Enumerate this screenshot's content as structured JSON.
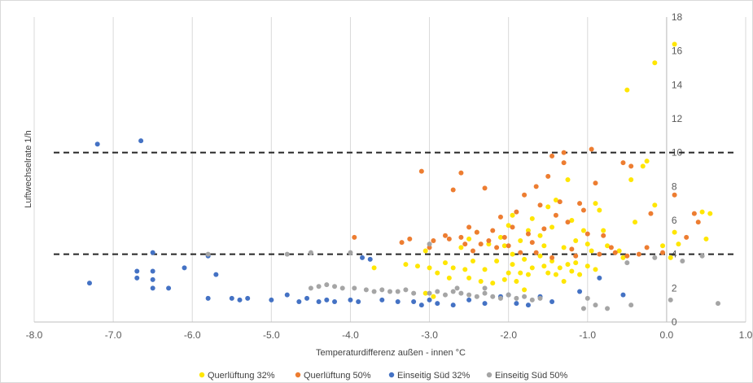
{
  "chart_data": {
    "type": "scatter",
    "title": "",
    "xlabel": "Temperaturdifferenz außen - innen °C",
    "ylabel": "Luftwechselrate 1/h",
    "xlim": [
      -8.0,
      1.0
    ],
    "ylim": [
      0,
      18
    ],
    "x_ticks": [
      -8,
      -7,
      -6,
      -5,
      -4,
      -3,
      -2,
      -1,
      0,
      1
    ],
    "x_tick_labels": [
      "-8.0",
      "-7.0",
      "-6.0",
      "-5.0",
      "-4.0",
      "-3.0",
      "-2.0",
      "-1.0",
      "0.0",
      "1.0"
    ],
    "y_ticks": [
      0,
      2,
      4,
      6,
      8,
      10,
      12,
      14,
      16,
      18
    ],
    "y_tick_labels": [
      "0",
      "2",
      "4",
      "6",
      "8",
      "10",
      "12",
      "14",
      "16",
      "18"
    ],
    "y_axis_side": "right",
    "grid": "vertical",
    "legend_position": "bottom",
    "reference_lines": [
      {
        "y": 10,
        "color": "#262626",
        "style": "dashed"
      },
      {
        "y": 4,
        "color": "#262626",
        "style": "dashed"
      }
    ],
    "series": [
      {
        "name": "Querlüftung 32%",
        "color": "#ffe600",
        "points": [
          [
            -3.7,
            3.2
          ],
          [
            -3.3,
            3.4
          ],
          [
            -3.15,
            3.3
          ],
          [
            -3.05,
            4.2
          ],
          [
            -3.0,
            3.2
          ],
          [
            -2.8,
            3.5
          ],
          [
            -2.75,
            2.6
          ],
          [
            -2.7,
            3.2
          ],
          [
            -2.55,
            3.1
          ],
          [
            -2.5,
            2.6
          ],
          [
            -2.45,
            3.6
          ],
          [
            -2.35,
            2.4
          ],
          [
            -2.3,
            3.1
          ],
          [
            -2.2,
            2.3
          ],
          [
            -2.15,
            3.6
          ],
          [
            -2.05,
            2.5
          ],
          [
            -2.0,
            2.9
          ],
          [
            -1.95,
            3.4
          ],
          [
            -1.9,
            2.4
          ],
          [
            -1.85,
            2.9
          ],
          [
            -1.8,
            3.7
          ],
          [
            -1.75,
            2.8
          ],
          [
            -1.7,
            3.2
          ],
          [
            -1.6,
            3.9
          ],
          [
            -1.55,
            3.3
          ],
          [
            -1.5,
            2.9
          ],
          [
            -1.45,
            3.6
          ],
          [
            -1.4,
            2.8
          ],
          [
            -1.35,
            3.2
          ],
          [
            -1.3,
            2.4
          ],
          [
            -1.25,
            3.4
          ],
          [
            -1.2,
            3.0
          ],
          [
            -1.15,
            3.5
          ],
          [
            -1.1,
            2.8
          ],
          [
            -1.0,
            3.3
          ],
          [
            -0.95,
            4.2
          ],
          [
            -0.9,
            3.1
          ],
          [
            -2.6,
            4.4
          ],
          [
            -2.5,
            4.9
          ],
          [
            -2.4,
            5.3
          ],
          [
            -2.25,
            4.6
          ],
          [
            -2.1,
            5.0
          ],
          [
            -2.0,
            5.7
          ],
          [
            -1.95,
            6.3
          ],
          [
            -1.85,
            4.8
          ],
          [
            -1.75,
            5.4
          ],
          [
            -1.7,
            6.1
          ],
          [
            -1.6,
            5.1
          ],
          [
            -1.55,
            4.5
          ],
          [
            -1.5,
            6.8
          ],
          [
            -1.45,
            5.6
          ],
          [
            -1.4,
            7.2
          ],
          [
            -1.3,
            4.4
          ],
          [
            -1.25,
            8.4
          ],
          [
            -1.2,
            6.0
          ],
          [
            -1.15,
            4.8
          ],
          [
            -1.05,
            5.4
          ],
          [
            -1.0,
            4.6
          ],
          [
            -0.9,
            7.0
          ],
          [
            -0.85,
            6.6
          ],
          [
            -0.8,
            5.4
          ],
          [
            -0.75,
            4.5
          ],
          [
            -0.6,
            4.2
          ],
          [
            -0.55,
            3.8
          ],
          [
            -0.45,
            8.4
          ],
          [
            -0.4,
            5.9
          ],
          [
            -0.3,
            9.2
          ],
          [
            -0.25,
            9.5
          ],
          [
            -0.15,
            6.9
          ],
          [
            -0.05,
            4.5
          ],
          [
            0.05,
            3.8
          ],
          [
            0.1,
            5.3
          ],
          [
            0.15,
            4.6
          ],
          [
            0.45,
            6.5
          ],
          [
            0.5,
            4.9
          ],
          [
            0.55,
            6.4
          ],
          [
            -2.9,
            2.9
          ],
          [
            -3.05,
            1.7
          ],
          [
            -2.95,
            1.5
          ],
          [
            -1.8,
            1.9
          ],
          [
            -1.95,
            4.0
          ],
          [
            -2.05,
            4.5
          ],
          [
            -0.5,
            13.7
          ],
          [
            -0.15,
            15.3
          ],
          [
            0.1,
            16.4
          ]
        ]
      },
      {
        "name": "Querlüftung 50%",
        "color": "#ed7d31",
        "points": [
          [
            -3.95,
            5.0
          ],
          [
            -3.35,
            4.7
          ],
          [
            -3.25,
            4.9
          ],
          [
            -3.1,
            8.9
          ],
          [
            -3.0,
            4.4
          ],
          [
            -2.95,
            4.8
          ],
          [
            -2.8,
            5.1
          ],
          [
            -2.7,
            7.8
          ],
          [
            -2.6,
            8.8
          ],
          [
            -2.6,
            5.0
          ],
          [
            -2.55,
            4.6
          ],
          [
            -2.5,
            5.6
          ],
          [
            -2.45,
            4.2
          ],
          [
            -2.4,
            5.3
          ],
          [
            -2.3,
            7.9
          ],
          [
            -2.25,
            4.8
          ],
          [
            -2.2,
            5.4
          ],
          [
            -2.15,
            4.4
          ],
          [
            -2.1,
            6.2
          ],
          [
            -2.05,
            5.0
          ],
          [
            -2.0,
            4.5
          ],
          [
            -1.95,
            5.6
          ],
          [
            -1.9,
            6.5
          ],
          [
            -1.85,
            4.1
          ],
          [
            -1.8,
            7.5
          ],
          [
            -1.75,
            5.2
          ],
          [
            -1.7,
            4.7
          ],
          [
            -1.65,
            8.0
          ],
          [
            -1.6,
            6.9
          ],
          [
            -1.55,
            5.5
          ],
          [
            -1.5,
            8.6
          ],
          [
            -1.45,
            9.8
          ],
          [
            -1.4,
            6.3
          ],
          [
            -1.35,
            7.1
          ],
          [
            -1.3,
            10.0
          ],
          [
            -1.3,
            9.4
          ],
          [
            -1.25,
            5.9
          ],
          [
            -1.2,
            4.3
          ],
          [
            -1.1,
            7.0
          ],
          [
            -1.05,
            6.6
          ],
          [
            -1.0,
            5.2
          ],
          [
            -0.95,
            10.2
          ],
          [
            -0.9,
            8.2
          ],
          [
            -0.8,
            5.1
          ],
          [
            -0.7,
            4.4
          ],
          [
            -0.65,
            4.1
          ],
          [
            -0.55,
            9.4
          ],
          [
            -0.5,
            3.9
          ],
          [
            -0.45,
            9.2
          ],
          [
            -0.35,
            4.0
          ],
          [
            -0.25,
            4.4
          ],
          [
            -0.2,
            6.4
          ],
          [
            -0.05,
            4.1
          ],
          [
            0.1,
            7.5
          ],
          [
            0.25,
            5.0
          ],
          [
            0.35,
            6.4
          ],
          [
            0.4,
            5.9
          ],
          [
            -2.75,
            4.9
          ],
          [
            -2.35,
            4.6
          ],
          [
            -1.65,
            4.1
          ],
          [
            -1.45,
            3.8
          ],
          [
            -1.15,
            3.9
          ],
          [
            -0.85,
            4.0
          ]
        ]
      },
      {
        "name": "Einseitig Süd 32%",
        "color": "#4472c4",
        "points": [
          [
            -7.3,
            2.3
          ],
          [
            -7.2,
            10.5
          ],
          [
            -6.65,
            10.7
          ],
          [
            -6.7,
            3.0
          ],
          [
            -6.7,
            2.6
          ],
          [
            -6.5,
            4.1
          ],
          [
            -6.5,
            3.0
          ],
          [
            -6.5,
            2.5
          ],
          [
            -6.5,
            2.0
          ],
          [
            -6.3,
            2.0
          ],
          [
            -6.1,
            3.2
          ],
          [
            -5.8,
            3.9
          ],
          [
            -5.8,
            1.4
          ],
          [
            -5.7,
            2.8
          ],
          [
            -5.5,
            1.4
          ],
          [
            -5.4,
            1.3
          ],
          [
            -5.3,
            1.4
          ],
          [
            -5.0,
            1.3
          ],
          [
            -4.8,
            1.6
          ],
          [
            -4.65,
            1.2
          ],
          [
            -4.55,
            1.4
          ],
          [
            -4.4,
            1.2
          ],
          [
            -4.3,
            1.3
          ],
          [
            -4.2,
            1.2
          ],
          [
            -4.0,
            1.3
          ],
          [
            -3.9,
            1.2
          ],
          [
            -3.85,
            3.8
          ],
          [
            -3.75,
            3.7
          ],
          [
            -3.6,
            1.3
          ],
          [
            -3.4,
            1.2
          ],
          [
            -3.2,
            1.2
          ],
          [
            -3.1,
            1.0
          ],
          [
            -3.0,
            1.3
          ],
          [
            -2.9,
            1.1
          ],
          [
            -2.7,
            1.0
          ],
          [
            -2.5,
            1.3
          ],
          [
            -2.3,
            1.1
          ],
          [
            -2.1,
            1.5
          ],
          [
            -2.0,
            1.6
          ],
          [
            -1.9,
            1.1
          ],
          [
            -1.75,
            1.0
          ],
          [
            -1.6,
            1.5
          ],
          [
            -1.45,
            1.2
          ],
          [
            -1.1,
            1.8
          ],
          [
            -0.85,
            2.6
          ],
          [
            -0.55,
            1.6
          ]
        ]
      },
      {
        "name": "Einseitig Süd 50%",
        "color": "#a5a5a5",
        "points": [
          [
            -5.8,
            4.0
          ],
          [
            -4.8,
            4.0
          ],
          [
            -4.5,
            4.1
          ],
          [
            -4.5,
            2.0
          ],
          [
            -4.4,
            2.1
          ],
          [
            -4.3,
            2.2
          ],
          [
            -4.2,
            2.1
          ],
          [
            -4.1,
            2.0
          ],
          [
            -4.0,
            4.1
          ],
          [
            -3.95,
            2.0
          ],
          [
            -3.8,
            1.9
          ],
          [
            -3.7,
            1.8
          ],
          [
            -3.6,
            1.9
          ],
          [
            -3.5,
            1.8
          ],
          [
            -3.4,
            1.8
          ],
          [
            -3.3,
            1.9
          ],
          [
            -3.2,
            1.7
          ],
          [
            -3.0,
            1.7
          ],
          [
            -2.9,
            1.8
          ],
          [
            -2.8,
            1.6
          ],
          [
            -2.7,
            1.8
          ],
          [
            -2.6,
            1.7
          ],
          [
            -2.5,
            1.6
          ],
          [
            -2.4,
            1.5
          ],
          [
            -2.3,
            1.7
          ],
          [
            -2.2,
            1.5
          ],
          [
            -2.1,
            1.4
          ],
          [
            -2.0,
            1.6
          ],
          [
            -1.9,
            1.4
          ],
          [
            -1.8,
            1.5
          ],
          [
            -1.7,
            1.3
          ],
          [
            -1.6,
            1.4
          ],
          [
            -2.65,
            2.0
          ],
          [
            -2.3,
            2.0
          ],
          [
            -3.0,
            4.6
          ],
          [
            -1.05,
            0.8
          ],
          [
            -1.0,
            1.4
          ],
          [
            -0.9,
            1.0
          ],
          [
            -0.75,
            0.8
          ],
          [
            -0.5,
            3.5
          ],
          [
            -0.45,
            1.0
          ],
          [
            -0.15,
            3.8
          ],
          [
            0.05,
            1.3
          ],
          [
            0.2,
            3.6
          ],
          [
            0.45,
            3.9
          ],
          [
            0.65,
            1.1
          ]
        ]
      }
    ]
  }
}
